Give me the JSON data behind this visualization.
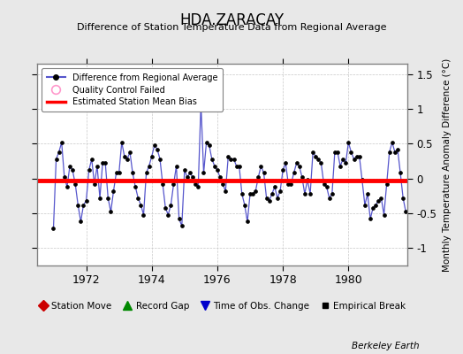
{
  "title": "HDA.ZARACAY",
  "subtitle": "Difference of Station Temperature Data from Regional Average",
  "ylabel": "Monthly Temperature Anomaly Difference (°C)",
  "bias": -0.03,
  "xlim_start": 1970.5,
  "xlim_end": 1981.8,
  "ylim": [
    -1.25,
    1.65
  ],
  "yticks": [
    -1,
    -0.5,
    0,
    0.5,
    1,
    1.5
  ],
  "xticks": [
    1972,
    1974,
    1976,
    1978,
    1980
  ],
  "background_color": "#e8e8e8",
  "plot_bg_color": "#ffffff",
  "line_color": "#5555cc",
  "marker_color": "#000000",
  "bias_color": "#ff0000",
  "grid_color": "#c8c8c8",
  "credit": "Berkeley Earth",
  "values": [
    -0.72,
    0.28,
    0.38,
    0.52,
    0.02,
    -0.12,
    0.18,
    0.12,
    -0.08,
    -0.38,
    -0.62,
    -0.38,
    -0.32,
    0.12,
    0.28,
    -0.08,
    0.18,
    -0.28,
    0.22,
    0.22,
    -0.28,
    -0.48,
    -0.18,
    0.08,
    0.08,
    0.52,
    0.32,
    0.28,
    0.38,
    0.08,
    -0.12,
    -0.28,
    -0.38,
    -0.52,
    0.08,
    0.18,
    0.32,
    0.48,
    0.42,
    0.28,
    -0.08,
    -0.42,
    -0.52,
    -0.38,
    -0.08,
    0.18,
    -0.58,
    -0.68,
    0.12,
    0.02,
    0.08,
    0.02,
    -0.08,
    -0.12,
    1.08,
    0.08,
    0.52,
    0.48,
    0.28,
    0.18,
    0.12,
    0.02,
    -0.08,
    -0.18,
    0.32,
    0.28,
    0.28,
    0.18,
    0.18,
    -0.22,
    -0.38,
    -0.62,
    -0.22,
    -0.22,
    -0.18,
    0.02,
    0.18,
    0.08,
    -0.28,
    -0.32,
    -0.22,
    -0.12,
    -0.28,
    -0.18,
    0.12,
    0.22,
    -0.08,
    -0.08,
    0.08,
    0.22,
    0.18,
    0.02,
    -0.22,
    -0.02,
    -0.22,
    0.38,
    0.32,
    0.28,
    0.22,
    -0.08,
    -0.12,
    -0.28,
    -0.22,
    0.38,
    0.38,
    0.18,
    0.28,
    0.22,
    0.52,
    0.38,
    0.28,
    0.32,
    0.32,
    -0.02,
    -0.38,
    -0.22,
    -0.58,
    -0.42,
    -0.38,
    -0.32,
    -0.28,
    -0.52,
    -0.08,
    0.38,
    0.52,
    0.38,
    0.42,
    0.08,
    -0.28,
    -0.48
  ],
  "start_year": 1971.0
}
